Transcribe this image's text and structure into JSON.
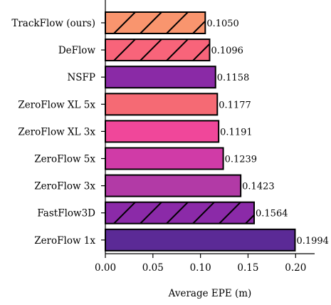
{
  "chart_data": {
    "type": "bar",
    "orientation": "horizontal",
    "categories": [
      "TrackFlow (ours)",
      "DeFlow",
      "NSFP",
      "ZeroFlow XL 5x",
      "ZeroFlow XL 3x",
      "ZeroFlow 5x",
      "ZeroFlow 3x",
      "FastFlow3D",
      "ZeroFlow 1x"
    ],
    "values": [
      0.105,
      0.1096,
      0.1158,
      0.1177,
      0.1191,
      0.1239,
      0.1423,
      0.1564,
      0.1994
    ],
    "value_labels": [
      "0.1050",
      "0.1096",
      "0.1158",
      "0.1177",
      "0.1191",
      "0.1239",
      "0.1423",
      "0.1564",
      "0.1994"
    ],
    "colors": [
      "#f9956e",
      "#f8647a",
      "#8a2aa6",
      "#f56a74",
      "#f0479a",
      "#d03ba7",
      "#b23aa6",
      "#8b2aa8",
      "#5b2a96"
    ],
    "hatched": [
      true,
      true,
      false,
      false,
      false,
      false,
      false,
      true,
      false
    ],
    "xlabel": "Average EPE (m)",
    "ylabel": "",
    "xlim": [
      0,
      0.22
    ],
    "xticks": [
      0.0,
      0.05,
      0.1,
      0.15,
      0.2
    ],
    "xtick_labels": [
      "0.00",
      "0.05",
      "0.10",
      "0.15",
      "0.20"
    ],
    "grid": false,
    "legend": "none"
  }
}
